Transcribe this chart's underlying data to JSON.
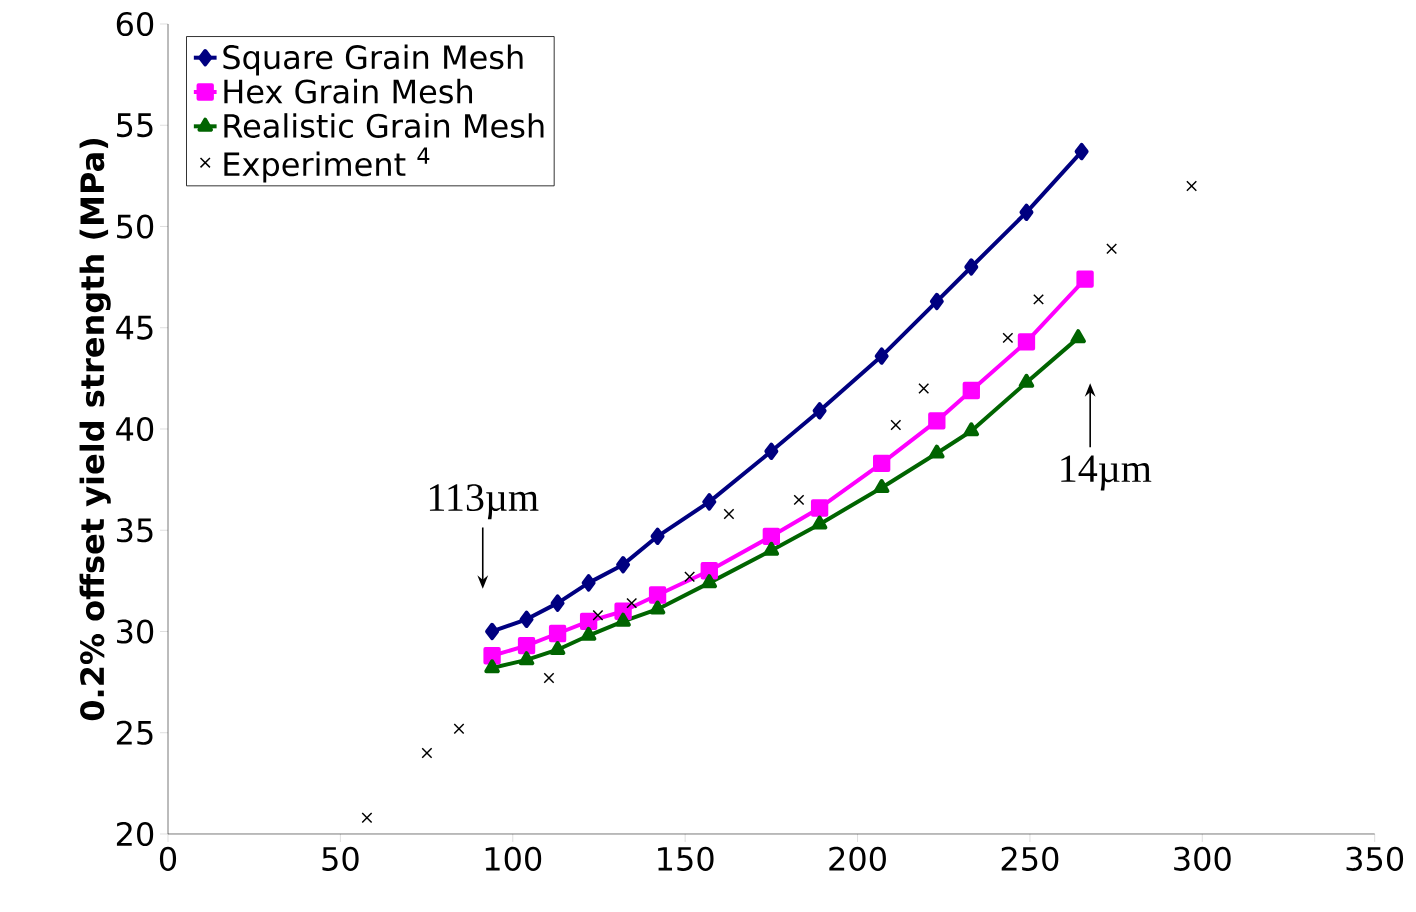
{
  "chart_data": {
    "type": "line",
    "xlabel": null,
    "ylabel": "0.2% offset yield strength (MPa)",
    "xlim": [
      0,
      350
    ],
    "ylim": [
      20,
      60
    ],
    "xticks": [
      0,
      50,
      100,
      150,
      200,
      250,
      300,
      350
    ],
    "yticks": [
      20,
      25,
      30,
      35,
      40,
      45,
      50,
      55,
      60
    ],
    "grid": false,
    "legend": "top left",
    "series": [
      {
        "name": "Square Grain Mesh",
        "marker": "diamond",
        "color": "#000080",
        "x": [
          94,
          104,
          113,
          122,
          132,
          142,
          157,
          175,
          189,
          207,
          223,
          233,
          249,
          265
        ],
        "values": [
          30.0,
          30.6,
          31.4,
          32.4,
          33.3,
          34.7,
          36.4,
          38.9,
          40.9,
          43.6,
          46.3,
          48.0,
          50.7,
          53.7
        ]
      },
      {
        "name": "Hex Grain Mesh",
        "marker": "square",
        "color": "#ff00ff",
        "x": [
          94,
          104,
          113,
          122,
          132,
          142,
          157,
          175,
          189,
          207,
          223,
          233,
          249,
          266
        ],
        "values": [
          28.8,
          29.3,
          29.9,
          30.5,
          31.0,
          31.8,
          33.0,
          34.7,
          36.1,
          38.3,
          40.4,
          41.9,
          44.3,
          47.4
        ]
      },
      {
        "name": "Realistic Grain Mesh",
        "marker": "triangle",
        "color": "#006400",
        "x": [
          94,
          104,
          113,
          122,
          132,
          142,
          157,
          175,
          189,
          207,
          223,
          233,
          249,
          264
        ],
        "values": [
          28.2,
          28.6,
          29.1,
          29.8,
          30.5,
          31.1,
          32.4,
          34.0,
          35.3,
          37.1,
          38.8,
          39.9,
          42.3,
          44.5
        ]
      },
      {
        "name": "Experiment $^{4}$",
        "type": "scatter",
        "marker": "cross",
        "color": "#000000",
        "x": [
          57.7,
          75.1,
          84.4,
          110.5,
          124.7,
          134.5,
          151.3,
          162.7,
          183.0,
          211.1,
          219.2,
          243.6,
          252.5,
          273.7,
          296.9
        ],
        "values": [
          20.8,
          24.0,
          25.2,
          27.7,
          30.8,
          31.4,
          32.7,
          35.8,
          36.5,
          40.2,
          42.0,
          44.5,
          46.4,
          48.9,
          52.0
        ]
      }
    ],
    "annotations": [
      {
        "text": "113µm",
        "x": 94,
        "y": 30.0
      },
      {
        "text": "14µm",
        "x": 264,
        "y": 44.5
      }
    ]
  }
}
